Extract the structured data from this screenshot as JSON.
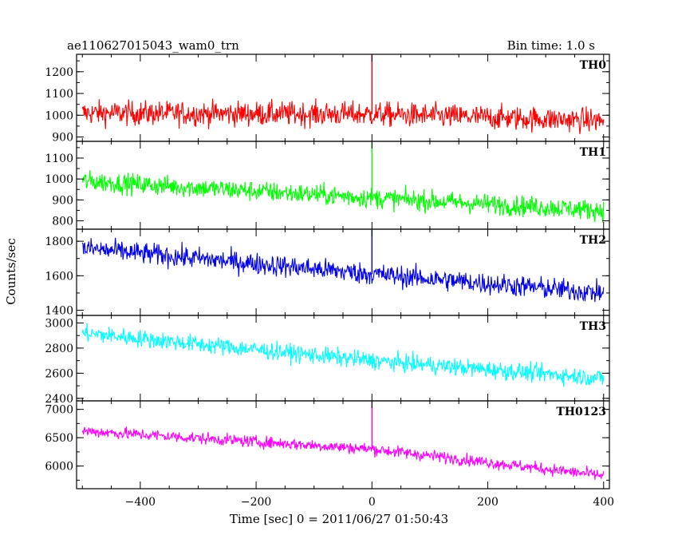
{
  "chart_data": {
    "type": "line",
    "title": "ae110627015043_wam0_trn",
    "subtitle": "Bin time: 1.0 s",
    "xlabel": "Time [sec] 0 = 2011/06/27 01:50:43",
    "ylabel": "Counts/sec",
    "xlim": [
      -510,
      410
    ],
    "xticks": [
      -400,
      -200,
      0,
      200,
      400
    ],
    "grid": false,
    "panels": [
      {
        "name": "TH0",
        "color": "#ff0000",
        "ylim": [
          880,
          1280
        ],
        "yticks": [
          900,
          1000,
          1100,
          1200
        ],
        "trend": {
          "x": [
            -500,
            0,
            400
          ],
          "y": [
            1010,
            1005,
            975
          ]
        },
        "noise": 40,
        "spike": {
          "x": 0,
          "y": 1280
        }
      },
      {
        "name": "TH1",
        "color": "#00ff00",
        "ylim": [
          760,
          1180
        ],
        "yticks": [
          800,
          900,
          1000,
          1100
        ],
        "trend": {
          "x": [
            -500,
            0,
            400
          ],
          "y": [
            990,
            910,
            850
          ]
        },
        "noise": 35,
        "spike": {
          "x": 0,
          "y": 1180
        }
      },
      {
        "name": "TH2",
        "color": "#0000ee",
        "ylim": [
          1370,
          1870
        ],
        "yticks": [
          1400,
          1600,
          1800
        ],
        "trend": {
          "x": [
            -500,
            0,
            400
          ],
          "y": [
            1760,
            1610,
            1500
          ]
        },
        "noise": 45,
        "spike": {
          "x": 0,
          "y": 1870
        }
      },
      {
        "name": "TH3",
        "color": "#00ffff",
        "ylim": [
          2380,
          3060
        ],
        "yticks": [
          2400,
          2600,
          2800,
          3000
        ],
        "trend": {
          "x": [
            -500,
            0,
            400
          ],
          "y": [
            2920,
            2700,
            2560
          ]
        },
        "noise": 50,
        "spike": null
      },
      {
        "name": "TH0123",
        "color": "#ff00ff",
        "ylim": [
          5600,
          7150
        ],
        "yticks": [
          6000,
          6500,
          7000
        ],
        "trend": {
          "x": [
            -500,
            0,
            400
          ],
          "y": [
            6620,
            6300,
            5830
          ]
        },
        "noise": 75,
        "spike": {
          "x": 0,
          "y": 7150
        }
      }
    ]
  }
}
